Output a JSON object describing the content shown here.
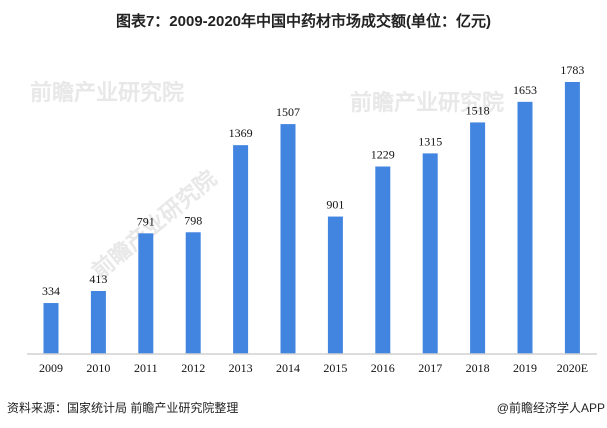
{
  "chart_data": {
    "type": "bar",
    "title": "图表7：2009-2020年中国中药材市场成交额(单位：亿元)",
    "categories": [
      "2009",
      "2010",
      "2011",
      "2012",
      "2013",
      "2014",
      "2015",
      "2016",
      "2017",
      "2018",
      "2019",
      "2020E"
    ],
    "values": [
      334,
      413,
      791,
      798,
      1369,
      1507,
      901,
      1229,
      1315,
      1518,
      1653,
      1783
    ],
    "xlabel": "",
    "ylabel": "",
    "ylim": [
      0,
      1783
    ],
    "grid": false,
    "bar_color": "#4285e0"
  },
  "footer": {
    "source": "资料来源：国家统计局 前瞻产业研究院整理",
    "credit": "@前瞻经济学人APP"
  },
  "watermark": "前瞻产业研究院"
}
